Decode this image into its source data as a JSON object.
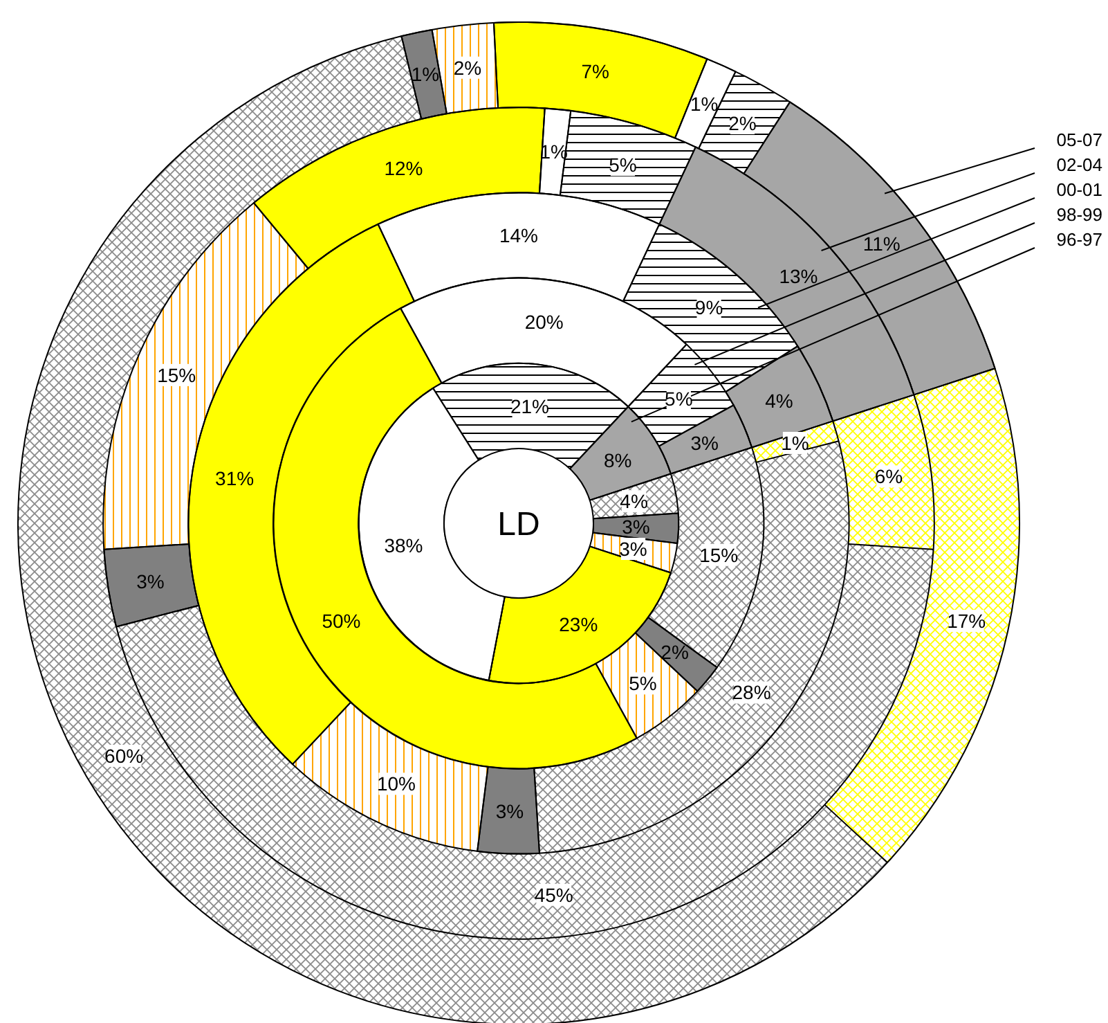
{
  "chart_data": {
    "type": "donut",
    "title": "LD",
    "categories": [
      null,
      null,
      null,
      null,
      null,
      null,
      null,
      null
    ],
    "colors": [
      "#ffff00",
      "#8c8c8c",
      "#808080",
      "#ffa500",
      "#ffff00",
      "#ffffff",
      "#000000",
      "#a6a6a6"
    ],
    "legend": "right",
    "series": [
      {
        "name": "05-07",
        "values": [
          17,
          60,
          1,
          2,
          7,
          1,
          2,
          11
        ],
        "value_labels": [
          "17%",
          "60%",
          "1%",
          "2%",
          "7%",
          "1%",
          "2%",
          "11%"
        ]
      },
      {
        "name": "02-04",
        "values": [
          6,
          45,
          3,
          15,
          12,
          1,
          5,
          13
        ],
        "value_labels": [
          "6%",
          "45%",
          "3%",
          "15%",
          "12%",
          "1%",
          "5%",
          "13%"
        ]
      },
      {
        "name": "00-01",
        "values": [
          1,
          28,
          3,
          10,
          31,
          14,
          9,
          4
        ],
        "value_labels": [
          "1%",
          "28%",
          "3%",
          "10%",
          "31%",
          "14%",
          "9%",
          "4%"
        ]
      },
      {
        "name": "98-99",
        "values": [
          null,
          15,
          2,
          5,
          50,
          20,
          5,
          3
        ],
        "value_labels": [
          null,
          "15%",
          "2%",
          "5%",
          "50%",
          "20%",
          "5%",
          "3%"
        ]
      },
      {
        "name": "96-97",
        "values": [
          null,
          4,
          3,
          3,
          23,
          38,
          21,
          8
        ],
        "value_labels": [
          null,
          "4%",
          "3%",
          "3%",
          "23%",
          "38%",
          "21%",
          "8%"
        ]
      }
    ]
  }
}
